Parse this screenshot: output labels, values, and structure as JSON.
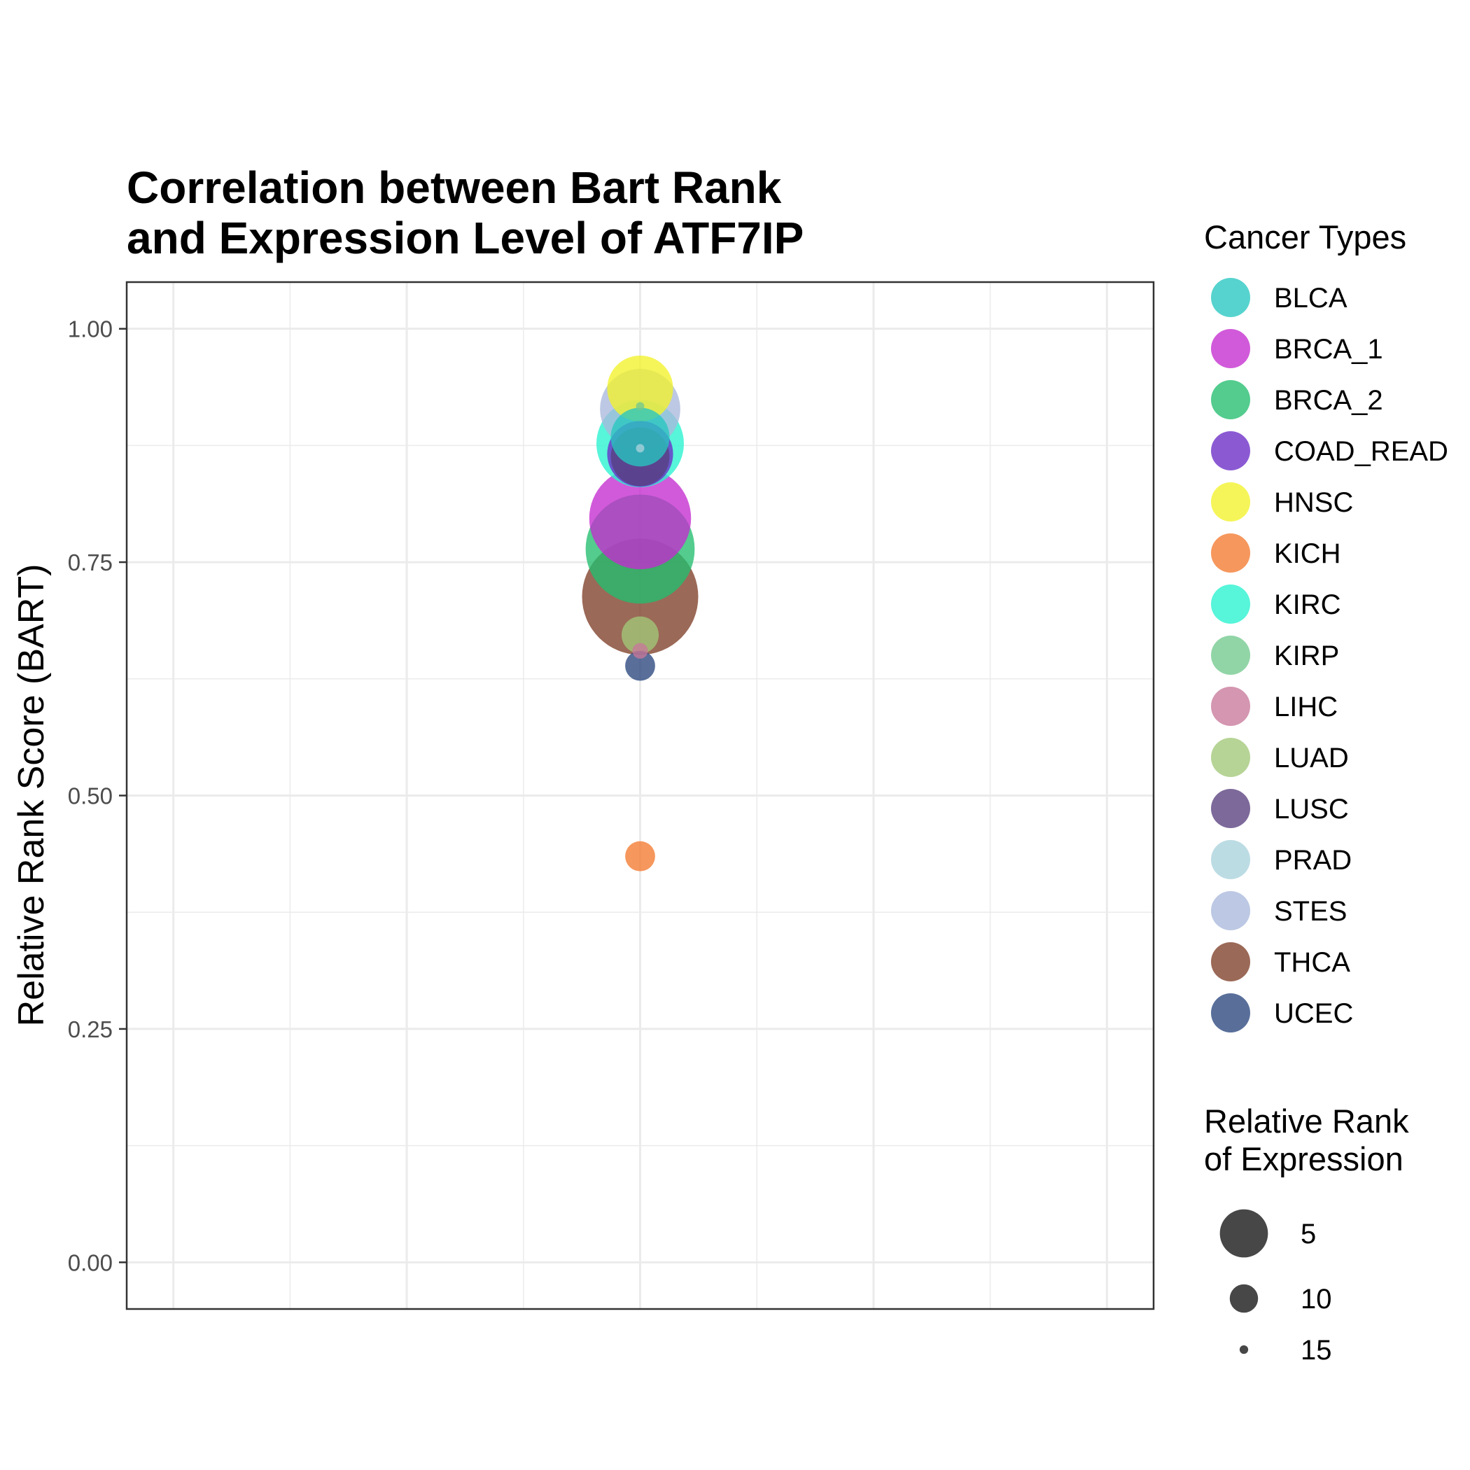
{
  "chart_data": {
    "type": "scatter",
    "title": [
      "Correlation between Bart Rank",
      "and Expression Level of ATF7IP"
    ],
    "xlabel": "",
    "ylabel": "Relative Rank Score (BART)",
    "ylim": [
      -0.05,
      1.05
    ],
    "xlim": [
      0.56,
      1.44
    ],
    "y_ticks": [
      {
        "value": 0.0,
        "label": "0.00"
      },
      {
        "value": 0.25,
        "label": "0.25"
      },
      {
        "value": 0.5,
        "label": "0.50"
      },
      {
        "value": 0.75,
        "label": "0.75"
      },
      {
        "value": 1.0,
        "label": "1.00"
      }
    ],
    "grid": true,
    "legend_position": "right",
    "color_legend": {
      "title": "Cancer Types",
      "entries": [
        {
          "name": "BLCA",
          "color": "#26C6C0"
        },
        {
          "name": "BRCA_1",
          "color": "#C42CCF"
        },
        {
          "name": "BRCA_2",
          "color": "#22BE6E"
        },
        {
          "name": "COAD_READ",
          "color": "#6A2CC6"
        },
        {
          "name": "HNSC",
          "color": "#F2F22A"
        },
        {
          "name": "KICH",
          "color": "#F47A30"
        },
        {
          "name": "KIRC",
          "color": "#28F2D0"
        },
        {
          "name": "KIRP",
          "color": "#72C98E"
        },
        {
          "name": "LIHC",
          "color": "#C8789A"
        },
        {
          "name": "LUAD",
          "color": "#A2C878"
        },
        {
          "name": "LUSC",
          "color": "#593F7E"
        },
        {
          "name": "PRAD",
          "color": "#A9D2DC"
        },
        {
          "name": "STES",
          "color": "#A9B8DC"
        },
        {
          "name": "THCA",
          "color": "#7F3F28"
        },
        {
          "name": "UCEC",
          "color": "#2A477E"
        }
      ]
    },
    "size_legend": {
      "title": [
        "Relative Rank",
        "of Expression"
      ],
      "entries": [
        {
          "value": 5,
          "label": "5"
        },
        {
          "value": 10,
          "label": "10"
        },
        {
          "value": 15,
          "label": "15"
        }
      ],
      "color": "#333333"
    },
    "points": [
      {
        "name": "THCA",
        "x": 1,
        "y": 0.713,
        "rank": 1
      },
      {
        "name": "BRCA_2",
        "x": 1,
        "y": 0.764,
        "rank": 2
      },
      {
        "name": "BRCA_1",
        "x": 1,
        "y": 0.797,
        "rank": 3
      },
      {
        "name": "KIRC",
        "x": 1,
        "y": 0.877,
        "rank": 5
      },
      {
        "name": "STES",
        "x": 1,
        "y": 0.914,
        "rank": 6
      },
      {
        "name": "HNSC",
        "x": 1,
        "y": 0.936,
        "rank": 8
      },
      {
        "name": "COAD_READ",
        "x": 1,
        "y": 0.866,
        "rank": 8
      },
      {
        "name": "LUSC",
        "x": 1,
        "y": 0.863,
        "rank": 9
      },
      {
        "name": "BLCA",
        "x": 1,
        "y": 0.884,
        "rank": 9
      },
      {
        "name": "LUAD",
        "x": 1,
        "y": 0.672,
        "rank": 12
      },
      {
        "name": "UCEC",
        "x": 1,
        "y": 0.639,
        "rank": 13
      },
      {
        "name": "KICH",
        "x": 1,
        "y": 0.435,
        "rank": 13
      },
      {
        "name": "LIHC",
        "x": 1,
        "y": 0.655,
        "rank": 15
      },
      {
        "name": "KIRP",
        "x": 1,
        "y": 0.917,
        "rank": 16
      },
      {
        "name": "PRAD",
        "x": 1,
        "y": 0.872,
        "rank": 16
      }
    ]
  }
}
